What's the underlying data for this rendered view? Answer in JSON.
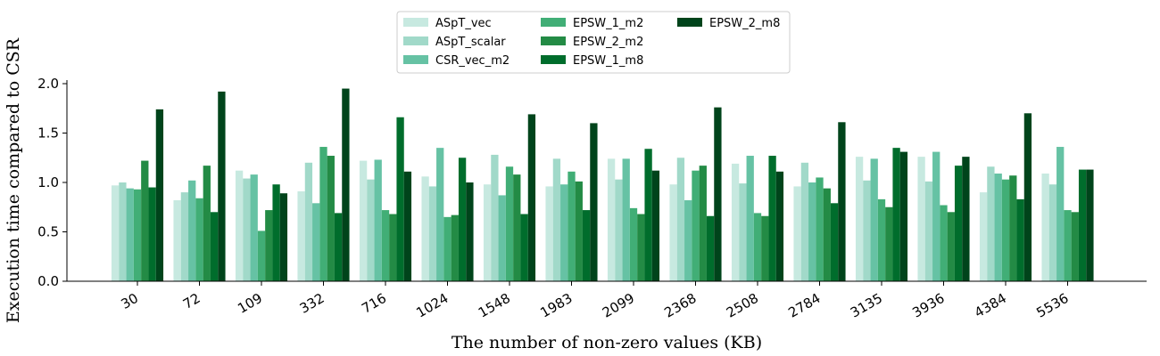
{
  "chart_data": {
    "type": "bar",
    "xlabel": "The number of non-zero values (KB)",
    "ylabel": "Execution time compared to CSR",
    "ylim": [
      0,
      2.05
    ],
    "yticks": [
      0.0,
      0.5,
      1.0,
      1.5,
      2.0
    ],
    "ytick_labels": [
      "0.0",
      "0.5",
      "1.0",
      "1.5",
      "2.0"
    ],
    "grid": false,
    "legend_position": "top-center",
    "categories": [
      "30",
      "72",
      "109",
      "332",
      "716",
      "1024",
      "1548",
      "1983",
      "2099",
      "2368",
      "2508",
      "2784",
      "3135",
      "3936",
      "4384",
      "5536"
    ],
    "series": [
      {
        "name": "ASpT_vec",
        "color": "#c7e9e0",
        "values": [
          0.97,
          0.82,
          1.12,
          0.91,
          1.22,
          1.06,
          0.98,
          0.96,
          1.24,
          0.98,
          1.19,
          0.96,
          1.26,
          1.26,
          0.9,
          1.09
        ]
      },
      {
        "name": "ASpT_scalar",
        "color": "#a1d9c9",
        "values": [
          1.0,
          0.9,
          1.04,
          1.2,
          1.03,
          0.96,
          1.28,
          1.24,
          1.03,
          1.25,
          0.99,
          1.2,
          1.02,
          1.01,
          1.16,
          0.98
        ]
      },
      {
        "name": "CSR_vec_m2",
        "color": "#66c2a4",
        "values": [
          0.94,
          1.02,
          1.08,
          0.79,
          1.23,
          1.35,
          0.87,
          0.98,
          1.24,
          0.82,
          1.27,
          1.0,
          1.24,
          1.31,
          1.09,
          1.36
        ]
      },
      {
        "name": "EPSW_1_m2",
        "color": "#41ae76",
        "values": [
          0.93,
          0.84,
          0.51,
          1.36,
          0.72,
          0.65,
          1.16,
          1.11,
          0.74,
          1.12,
          0.69,
          1.05,
          0.83,
          0.77,
          1.03,
          0.72
        ]
      },
      {
        "name": "EPSW_2_m2",
        "color": "#238b45",
        "values": [
          1.22,
          1.17,
          0.72,
          1.27,
          0.68,
          0.67,
          1.08,
          1.01,
          0.68,
          1.17,
          0.66,
          0.94,
          0.75,
          0.7,
          1.07,
          0.7
        ]
      },
      {
        "name": "EPSW_1_m8",
        "color": "#006d2c",
        "values": [
          0.95,
          0.7,
          0.98,
          0.69,
          1.66,
          1.25,
          0.68,
          0.72,
          1.34,
          0.66,
          1.27,
          0.79,
          1.35,
          1.17,
          0.83,
          1.13
        ]
      },
      {
        "name": "EPSW_2_m8",
        "color": "#00441b",
        "values": [
          1.74,
          1.92,
          0.89,
          1.95,
          1.11,
          1.0,
          1.69,
          1.6,
          1.12,
          1.76,
          1.11,
          1.61,
          1.31,
          1.26,
          1.7,
          1.13
        ]
      }
    ]
  }
}
